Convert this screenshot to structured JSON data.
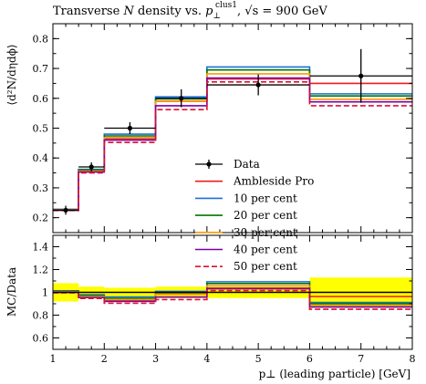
{
  "chart_data": {
    "type": "line",
    "title": "Transverse N density vs. p⊥^clus1, √s = 900 GeV",
    "title_parts": {
      "prefix": "Transverse ",
      "symbol_N": "N",
      "middle": " density vs. ",
      "symbol_p": "p",
      "sub": "⊥",
      "sup": "clus1",
      "sep": ", ",
      "sqrt_s": "√s",
      "suffix": " = 900 GeV"
    },
    "xlabel": "p⊥ (leading particle) [GeV]",
    "ylabel_main": "⟨d²N/dηdϕ⟩",
    "ylabel_ratio": "MC/Data",
    "xlim": [
      1,
      8
    ],
    "ylim_main": [
      0.15,
      0.85
    ],
    "ylim_ratio": [
      0.5,
      1.5
    ],
    "x_ticks": [
      "1",
      "2",
      "3",
      "4",
      "5",
      "6",
      "7",
      "8"
    ],
    "y_ticks_main": [
      "0.2",
      "0.3",
      "0.4",
      "0.5",
      "0.6",
      "0.7",
      "0.8"
    ],
    "y_ticks_ratio": [
      "0.6",
      "0.8",
      "1",
      "1.2",
      "1.4"
    ],
    "bin_edges": [
      1.0,
      1.5,
      2.0,
      3.0,
      4.0,
      6.0,
      8.0
    ],
    "data": {
      "name": "Data",
      "color": "#000000",
      "x": [
        1.25,
        1.75,
        2.5,
        3.5,
        5.0,
        7.0
      ],
      "y": [
        0.225,
        0.37,
        0.5,
        0.6,
        0.645,
        0.675
      ],
      "yerr": [
        0.015,
        0.015,
        0.02,
        0.03,
        0.035,
        0.09
      ],
      "xerr": [
        0.25,
        0.25,
        0.5,
        0.5,
        1.0,
        1.0
      ]
    },
    "ratio_band": {
      "color": "#ffff00",
      "lo": [
        0.92,
        0.95,
        0.96,
        0.95,
        0.95,
        0.87
      ],
      "hi": [
        1.08,
        1.05,
        1.04,
        1.05,
        1.05,
        1.13
      ]
    },
    "series": [
      {
        "name": "Ambleside Pro",
        "color": "#ee1c1c",
        "dash": false,
        "values": [
          0.225,
          0.36,
          0.465,
          0.59,
          0.665,
          0.65
        ]
      },
      {
        "name": "10 per cent",
        "color": "#1f6fdb",
        "dash": false,
        "values": [
          0.228,
          0.362,
          0.48,
          0.605,
          0.705,
          0.615
        ]
      },
      {
        "name": "20 per cent",
        "color": "#007700",
        "dash": false,
        "values": [
          0.227,
          0.36,
          0.474,
          0.598,
          0.695,
          0.608
        ]
      },
      {
        "name": "30 per cent",
        "color": "#ff9900",
        "dash": false,
        "values": [
          0.226,
          0.356,
          0.468,
          0.59,
          0.682,
          0.597
        ]
      },
      {
        "name": "40 per cent",
        "color": "#7a00a8",
        "dash": false,
        "values": [
          0.225,
          0.353,
          0.46,
          0.575,
          0.668,
          0.588
        ]
      },
      {
        "name": "50 per cent",
        "color": "#dd1133",
        "dash": true,
        "values": [
          0.224,
          0.35,
          0.452,
          0.562,
          0.655,
          0.575
        ]
      }
    ],
    "legend_placement": "center-right",
    "grid": false
  }
}
